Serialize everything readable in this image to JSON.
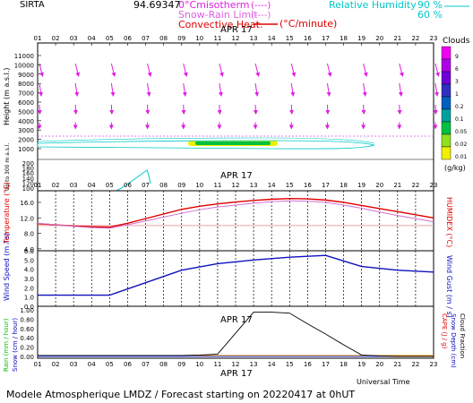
{
  "header": {
    "station": "SIRTA",
    "coords": "94.69347",
    "leg_rh_label": "Relative Humidity",
    "leg_rh_90": "90 %",
    "leg_rh_60": "60 %",
    "leg_isotherm": "0°Cmisotherm",
    "leg_isotherm_mark": "(----)",
    "leg_snowrain": "Snow-Rain Limit",
    "leg_snowrain_mark": "(----)",
    "leg_convective": "Convective Heat.",
    "leg_convective_unit": "(°C/minute)"
  },
  "date_label": "APR 17",
  "hours": [
    "01",
    "02",
    "03",
    "04",
    "05",
    "06",
    "07",
    "08",
    "09",
    "10",
    "11",
    "12",
    "13",
    "14",
    "15",
    "16",
    "17",
    "18",
    "19",
    "20",
    "21",
    "22",
    "23"
  ],
  "footer": {
    "universal_time": "Universal Time",
    "model_line": "Modele Atmospherique LMDZ / Forecast starting on 20220417 at 0hUT"
  },
  "colors": {
    "arrow": "#e020e0",
    "temp": "#e00000",
    "dew": "#d070d0",
    "wind": "#1010c0",
    "precip": "#000000",
    "rh_curve": "#00c8c8",
    "isotherm": "#e050e0",
    "axis": "#000000"
  },
  "chart_data": [
    {
      "type": "profile",
      "name": "altitude",
      "ylabel": "Height (m a.s.l.)",
      "ylabel_low": "Up to 300 m a.s.l.",
      "yticks_upper": [
        "11000",
        "10000",
        "9000",
        "8000",
        "7000",
        "6000",
        "5000",
        "4000",
        "3000",
        "2000",
        "1000"
      ],
      "yticks_lower": [
        "200",
        "180",
        "160",
        "140",
        "120",
        "100"
      ],
      "zero_isotherm_m": 2650,
      "clouds_legend": {
        "title": "Clouds",
        "unit": "(g/kg)",
        "levels": [
          "9",
          "6",
          "3",
          "1",
          "0.2",
          "0.1",
          "0.05",
          "0.02",
          "0.01"
        ],
        "colors": [
          "#f000f0",
          "#b000e8",
          "#7000d8",
          "#3030c0",
          "#0060c0",
          "#00a0a0",
          "#00c040",
          "#90e020",
          "#f0f000"
        ]
      },
      "cloud_layer": {
        "start_hour": 1,
        "end_hour": 20,
        "height_m": 1200
      }
    },
    {
      "type": "line",
      "name": "temperature",
      "ylabel": "Temperature (°C)",
      "ylabel_right": "HUMIDEX (°C)",
      "yticks": [
        "16.0",
        "12.0",
        "8.0",
        "4.0"
      ],
      "ylim": [
        3.5,
        19
      ],
      "x": [
        1,
        2,
        3,
        4,
        5,
        6,
        7,
        8,
        9,
        10,
        11,
        12,
        13,
        14,
        15,
        16,
        17,
        18,
        19,
        20,
        21,
        22,
        23
      ],
      "series": [
        {
          "values": [
            10.5,
            10.2,
            9.9,
            9.7,
            9.6,
            10.6,
            11.8,
            13.0,
            14.2,
            15.0,
            15.6,
            16.1,
            16.5,
            16.8,
            17.0,
            16.9,
            16.6,
            16.0,
            15.2,
            14.4,
            13.6,
            12.8,
            12.0
          ]
        },
        {
          "values": [
            10.6,
            10.2,
            9.8,
            9.5,
            9.3,
            10.2,
            11.2,
            12.2,
            13.2,
            14.1,
            14.8,
            15.3,
            15.8,
            16.2,
            16.4,
            16.3,
            16.0,
            15.3,
            14.5,
            13.5,
            12.6,
            11.8,
            11.0
          ]
        }
      ],
      "reference_line": 10.0
    },
    {
      "type": "line",
      "name": "wind",
      "ylabel": "Wind Speed (m / s)",
      "ylabel_right": "Wind Gust (m / s)",
      "yticks": [
        "6.0",
        "5.0",
        "4.0",
        "3.0",
        "2.0",
        "1.0",
        "0.0"
      ],
      "ylim": [
        0,
        6
      ],
      "x": [
        1,
        5,
        9,
        11,
        13,
        15,
        17,
        19,
        21,
        23
      ],
      "values": [
        1.2,
        1.2,
        3.9,
        4.6,
        5.0,
        5.3,
        5.5,
        4.3,
        3.9,
        3.7
      ]
    },
    {
      "type": "line",
      "name": "precipitation",
      "ylabel_left_1": "Rain (mm / hour)",
      "ylabel_left_2": "Snow (cm / hour)",
      "ylabel_right_1": "CAPE (J / g)",
      "ylabel_right_2": "Snow Depth (cm)",
      "ylabel_right_3": "Cloud Fraction",
      "yticks": [
        "1.00",
        "0.80",
        "0.60",
        "0.40",
        "0.20",
        "0.00"
      ],
      "ylim": [
        0,
        1
      ],
      "x": [
        1,
        5,
        9,
        10,
        11,
        13,
        14,
        15,
        16,
        17,
        18,
        19,
        20,
        21,
        22,
        23
      ],
      "values": [
        0.02,
        0.02,
        0.02,
        0.03,
        0.05,
        0.95,
        0.95,
        0.93,
        0.7,
        0.48,
        0.25,
        0.03,
        0.01,
        0.0,
        0.0,
        0.0
      ]
    }
  ]
}
